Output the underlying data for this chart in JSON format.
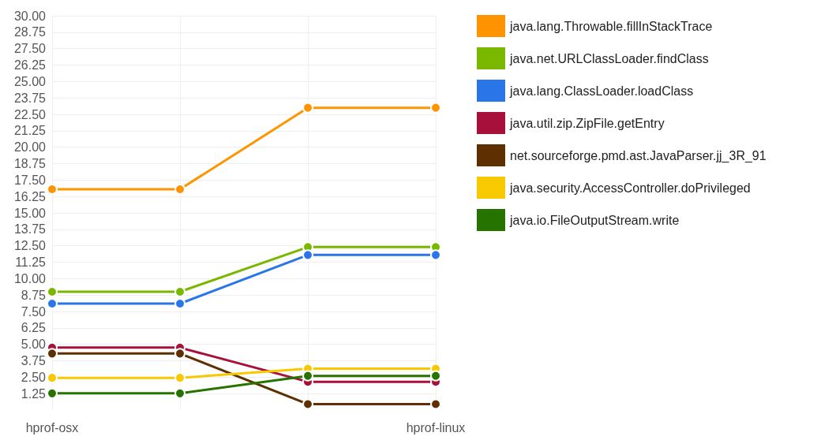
{
  "chart_data": {
    "type": "line",
    "categories": [
      "hprof-osx",
      null,
      null,
      "hprof-linux"
    ],
    "series": [
      {
        "name": "java.lang.Throwable.fillInStackTrace",
        "color": "#ff9400",
        "values": [
          16.8,
          16.8,
          23.0,
          23.0
        ]
      },
      {
        "name": "java.net.URLClassLoader.findClass",
        "color": "#7ab800",
        "values": [
          9.0,
          9.0,
          12.4,
          12.4
        ]
      },
      {
        "name": "java.lang.ClassLoader.loadClass",
        "color": "#2a75e8",
        "values": [
          8.1,
          8.1,
          11.8,
          11.8
        ]
      },
      {
        "name": "java.util.zip.ZipFile.getEntry",
        "color": "#a8103c",
        "values": [
          4.75,
          4.75,
          2.15,
          2.15
        ]
      },
      {
        "name": "net.sourceforge.pmd.ast.JavaParser.jj_3R_91",
        "color": "#5e2f00",
        "values": [
          4.3,
          4.3,
          0.45,
          0.45
        ]
      },
      {
        "name": "java.security.AccessController.doPrivileged",
        "color": "#f8c800",
        "values": [
          2.45,
          2.45,
          3.15,
          3.15
        ]
      },
      {
        "name": "java.io.FileOutputStream.write",
        "color": "#267300",
        "values": [
          1.27,
          1.27,
          2.6,
          2.6
        ]
      }
    ],
    "ylim": [
      0,
      30
    ],
    "yticks": [
      1.25,
      {
        "value": 2.5,
        "label": "2.50"
      },
      3.75,
      {
        "value": 5,
        "label": "5.00"
      },
      6.25,
      {
        "value": 7.5,
        "label": "7.50"
      },
      8.75,
      {
        "value": 10,
        "label": "10.00"
      },
      11.25,
      {
        "value": 12.5,
        "label": "12.50"
      },
      13.75,
      {
        "value": 15,
        "label": "15.00"
      },
      16.25,
      {
        "value": 17.5,
        "label": "17.50"
      },
      18.75,
      {
        "value": 20,
        "label": "20.00"
      },
      21.25,
      {
        "value": 22.5,
        "label": "22.50"
      },
      23.75,
      {
        "value": 25,
        "label": "25.00"
      },
      26.25,
      {
        "value": 27.5,
        "label": "27.50"
      },
      28.75,
      {
        "value": 30,
        "label": "30.00"
      }
    ],
    "grid": true,
    "legend": "top right",
    "marker": "circle",
    "line_style": "solid"
  }
}
